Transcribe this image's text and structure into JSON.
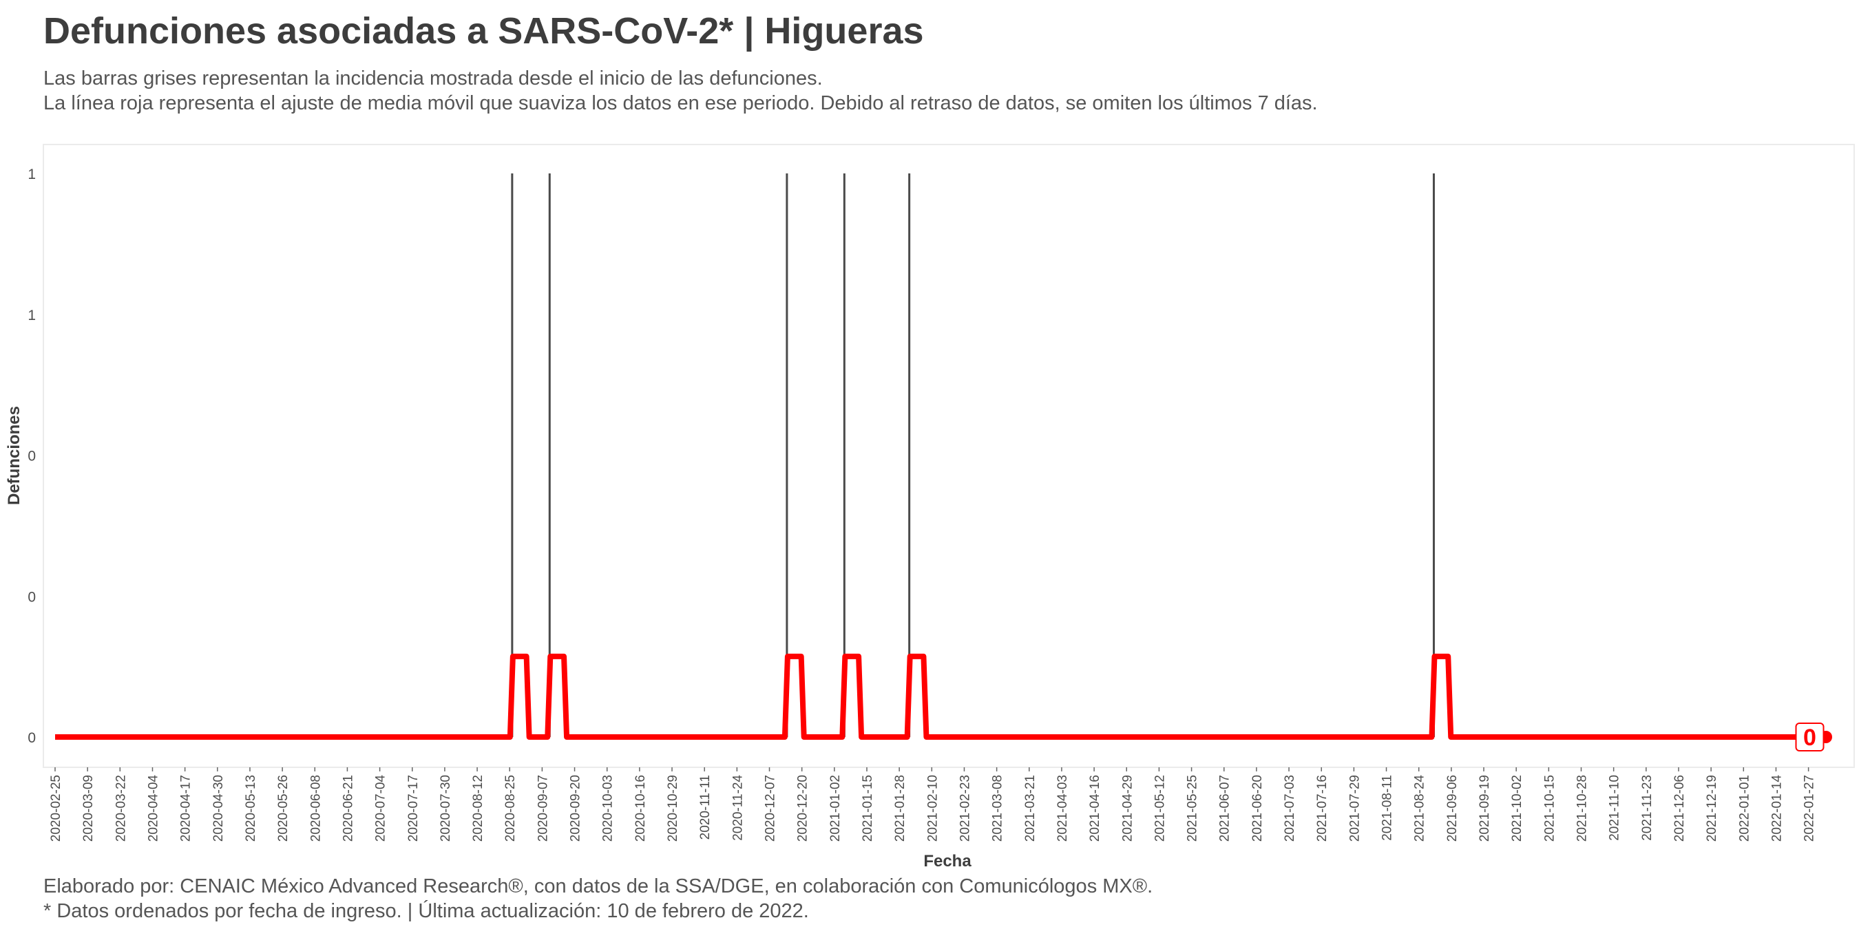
{
  "title": "Defunciones asociadas a SARS-CoV-2* | Higueras",
  "subtitle_lines": [
    "Las barras grises representan la incidencia mostrada desde el inicio de las defunciones.",
    "La línea roja representa el ajuste de media móvil que suaviza los datos en ese periodo. Debido al retraso de datos, se omiten los últimos 7 días."
  ],
  "caption_lines": [
    "Elaborado por: CENAIC México Advanced Research®, con datos de la SSA/DGE, en colaboración con Comunicólogos MX®.",
    "* Datos ordenados por fecha de ingreso. | Última actualización: 10 de febrero de 2022."
  ],
  "colors": {
    "bars": "#4a4a4a",
    "line": "#ff0000",
    "text": "#3d3d3d",
    "grid_frame": "#ebebeb"
  },
  "chart_data": {
    "type": "bar",
    "xlabel": "Fecha",
    "ylabel": "Defunciones",
    "x_range": [
      "2020-02-25",
      "2022-02-03"
    ],
    "ylim": [
      0,
      1
    ],
    "y_ticks": [
      {
        "value": 0,
        "label": "0"
      },
      {
        "value": 0.25,
        "label": "0"
      },
      {
        "value": 0.5,
        "label": "0"
      },
      {
        "value": 0.75,
        "label": "1"
      },
      {
        "value": 1,
        "label": "1"
      }
    ],
    "x_tick_labels": [
      "2020-02-25",
      "2020-03-09",
      "2020-03-22",
      "2020-04-04",
      "2020-04-17",
      "2020-04-30",
      "2020-05-13",
      "2020-05-26",
      "2020-06-08",
      "2020-06-21",
      "2020-07-04",
      "2020-07-17",
      "2020-07-30",
      "2020-08-12",
      "2020-08-25",
      "2020-09-07",
      "2020-09-20",
      "2020-10-03",
      "2020-10-16",
      "2020-10-29",
      "2020-11-11",
      "2020-11-24",
      "2020-12-07",
      "2020-12-20",
      "2021-01-02",
      "2021-01-15",
      "2021-01-28",
      "2021-02-10",
      "2021-02-23",
      "2021-03-08",
      "2021-03-21",
      "2021-04-03",
      "2021-04-16",
      "2021-04-29",
      "2021-05-12",
      "2021-05-25",
      "2021-06-07",
      "2021-06-20",
      "2021-07-03",
      "2021-07-16",
      "2021-07-29",
      "2021-08-11",
      "2021-08-24",
      "2021-09-06",
      "2021-09-19",
      "2021-10-02",
      "2021-10-15",
      "2021-10-28",
      "2021-11-10",
      "2021-11-23",
      "2021-12-06",
      "2021-12-19",
      "2022-01-01",
      "2022-01-14",
      "2022-01-27"
    ],
    "series": [
      {
        "name": "",
        "type": "bar",
        "points": [
          {
            "date": "2020-08-26",
            "value": 1
          },
          {
            "date": "2020-09-10",
            "value": 1
          },
          {
            "date": "2020-12-14",
            "value": 1
          },
          {
            "date": "2021-01-06",
            "value": 1
          },
          {
            "date": "2021-02-01",
            "value": 1
          },
          {
            "date": "2021-08-30",
            "value": 1
          }
        ]
      },
      {
        "name": "",
        "type": "line",
        "baseline": 0,
        "windows": [
          {
            "start": "2020-08-26",
            "end": "2020-09-01",
            "value": 0.143
          },
          {
            "start": "2020-09-10",
            "end": "2020-09-16",
            "value": 0.143
          },
          {
            "start": "2020-12-14",
            "end": "2020-12-20",
            "value": 0.143
          },
          {
            "start": "2021-01-06",
            "end": "2021-01-12",
            "value": 0.143
          },
          {
            "start": "2021-02-01",
            "end": "2021-02-07",
            "value": 0.143
          },
          {
            "start": "2021-08-30",
            "end": "2021-09-05",
            "value": 0.143
          }
        ]
      }
    ],
    "last_value_label": "0"
  }
}
